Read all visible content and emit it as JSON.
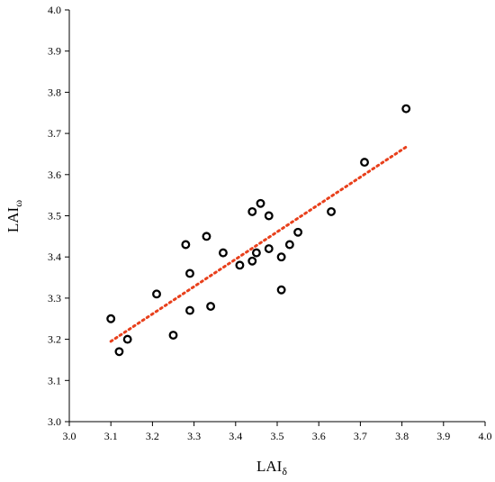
{
  "chart_data": {
    "type": "scatter",
    "title": "",
    "xlabel": {
      "base": "LAI",
      "sub": "δ"
    },
    "ylabel": {
      "base": "LAI",
      "sub": "ω"
    },
    "xlim": [
      3.0,
      4.0
    ],
    "ylim": [
      3.0,
      4.0
    ],
    "xticks": [
      "3.0",
      "3.1",
      "3.2",
      "3.3",
      "3.4",
      "3.5",
      "3.6",
      "3.7",
      "3.8",
      "3.9",
      "4.0"
    ],
    "yticks": [
      "3.0",
      "3.1",
      "3.2",
      "3.3",
      "3.4",
      "3.5",
      "3.6",
      "3.7",
      "3.8",
      "3.9",
      "4.0"
    ],
    "grid": false,
    "legend": "none",
    "marker": "open-circle",
    "marker_color": "#000000",
    "points": [
      {
        "x": 3.1,
        "y": 3.25
      },
      {
        "x": 3.12,
        "y": 3.17
      },
      {
        "x": 3.14,
        "y": 3.2
      },
      {
        "x": 3.21,
        "y": 3.31
      },
      {
        "x": 3.25,
        "y": 3.21
      },
      {
        "x": 3.28,
        "y": 3.43
      },
      {
        "x": 3.29,
        "y": 3.36
      },
      {
        "x": 3.29,
        "y": 3.27
      },
      {
        "x": 3.33,
        "y": 3.45
      },
      {
        "x": 3.34,
        "y": 3.28
      },
      {
        "x": 3.37,
        "y": 3.41
      },
      {
        "x": 3.41,
        "y": 3.38
      },
      {
        "x": 3.44,
        "y": 3.51
      },
      {
        "x": 3.44,
        "y": 3.39
      },
      {
        "x": 3.45,
        "y": 3.41
      },
      {
        "x": 3.46,
        "y": 3.53
      },
      {
        "x": 3.48,
        "y": 3.5
      },
      {
        "x": 3.48,
        "y": 3.42
      },
      {
        "x": 3.51,
        "y": 3.4
      },
      {
        "x": 3.51,
        "y": 3.32
      },
      {
        "x": 3.53,
        "y": 3.43
      },
      {
        "x": 3.55,
        "y": 3.46
      },
      {
        "x": 3.63,
        "y": 3.51
      },
      {
        "x": 3.71,
        "y": 3.63
      },
      {
        "x": 3.81,
        "y": 3.76
      }
    ],
    "trendline": {
      "style": "dotted",
      "color": "#e8401c",
      "from": {
        "x": 3.1,
        "y": 3.195
      },
      "to": {
        "x": 3.81,
        "y": 3.667
      }
    }
  }
}
